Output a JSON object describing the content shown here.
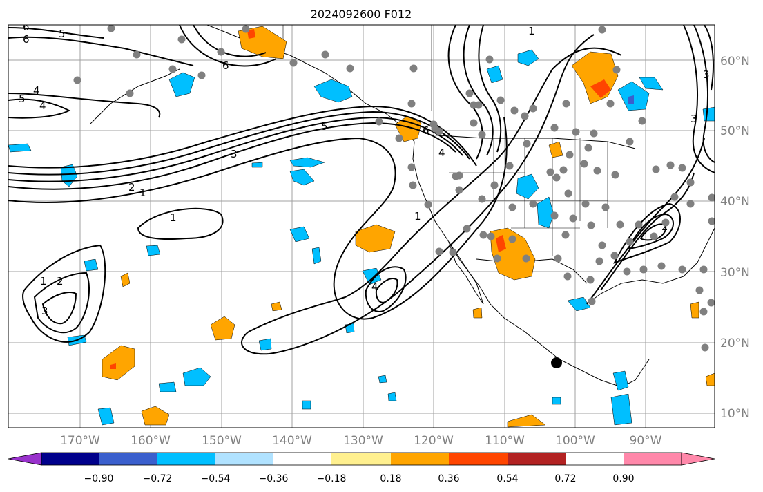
{
  "title": "2024092600 F012",
  "lat_ticks": [
    "60°N",
    "50°N",
    "40°N",
    "30°N",
    "20°N",
    "10°N"
  ],
  "lon_ticks": [
    "170°W",
    "160°W",
    "150°W",
    "140°W",
    "130°W",
    "120°W",
    "110°W",
    "100°W",
    "90°W"
  ],
  "colorbar": {
    "ticks": [
      "−0.90",
      "−0.72",
      "−0.54",
      "−0.36",
      "−0.18",
      "0.18",
      "0.36",
      "0.54",
      "0.72",
      "0.90"
    ],
    "colors": [
      "#9932cc",
      "#00008b",
      "#3a5fcd",
      "#00bfff",
      "#b0e2ff",
      "#ffffff",
      "#fff08f",
      "#ffa500",
      "#ff4500",
      "#b22222",
      "#ff88aa"
    ]
  },
  "contour_labels": [
    "6",
    "5",
    "4",
    "6",
    "5",
    "4",
    "6",
    "1",
    "6",
    "5",
    "4",
    "3",
    "2",
    "1",
    "1",
    "1",
    "2",
    "3",
    "4",
    "3",
    "2",
    "3",
    "1"
  ],
  "colors": {
    "positive": "#ffa500",
    "strong_positive": "#ff4500",
    "negative": "#00bfff",
    "stations": "#808080",
    "contour": "#000000",
    "grid": "#a0a0a0"
  }
}
